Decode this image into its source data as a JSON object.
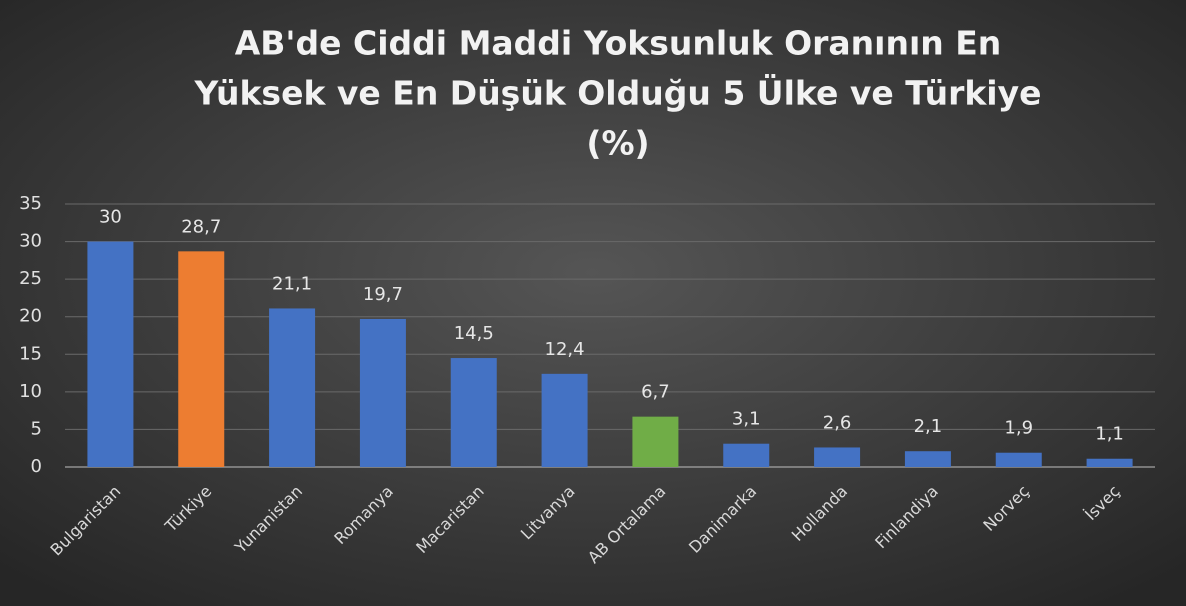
{
  "chart_data": {
    "type": "bar",
    "title": [
      "AB'de Ciddi Maddi Yoksunluk Oranının En",
      "Yüksek ve En Düşük Olduğu 5 Ülke ve Türkiye",
      "(%)"
    ],
    "categories": [
      "Bulgaristan",
      "Türkiye",
      "Yunanistan",
      "Romanya",
      "Macaristan",
      "Litvanya",
      "AB Ortalama",
      "Danimarka",
      "Hollanda",
      "Finlandiya",
      "Norveç",
      "İsveç"
    ],
    "values": [
      30,
      28.7,
      21.1,
      19.7,
      14.5,
      12.4,
      6.7,
      3.1,
      2.6,
      2.1,
      1.9,
      1.1
    ],
    "value_labels": [
      "30",
      "28,7",
      "21,1",
      "19,7",
      "14,5",
      "12,4",
      "6,7",
      "3,1",
      "2,6",
      "2,1",
      "1,9",
      "1,1"
    ],
    "colors": [
      "#4472c4",
      "#ed7d31",
      "#4472c4",
      "#4472c4",
      "#4472c4",
      "#4472c4",
      "#70ad47",
      "#4472c4",
      "#4472c4",
      "#4472c4",
      "#4472c4",
      "#4472c4"
    ],
    "ylim": [
      0,
      35
    ],
    "yticks": [
      0,
      5,
      10,
      15,
      20,
      25,
      30,
      35
    ],
    "grid": true
  }
}
